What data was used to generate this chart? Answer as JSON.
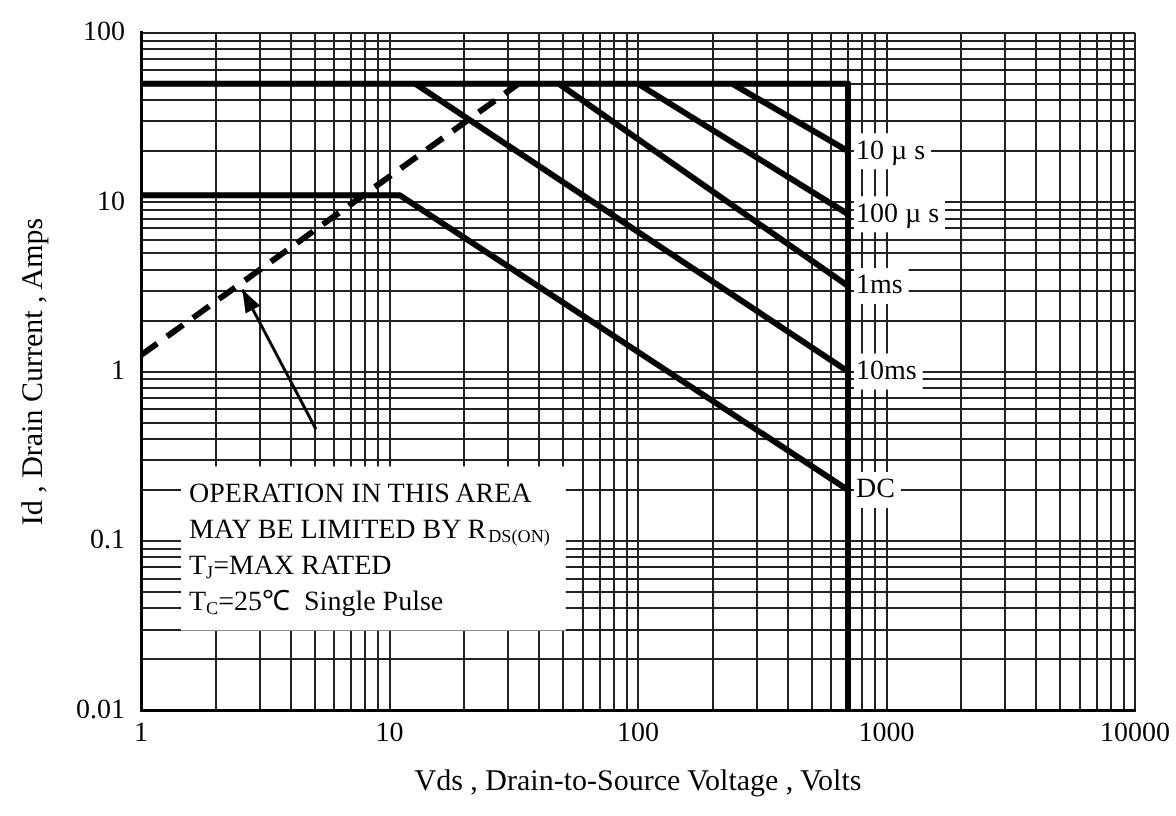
{
  "chart_data": {
    "type": "line",
    "xlabel": "Vds , Drain-to-Source Voltage , Volts",
    "ylabel": "Id , Drain Current , Amps",
    "xlim": [
      1,
      10000
    ],
    "xticks": [
      1,
      10,
      100,
      1000,
      10000
    ],
    "ylim": [
      0.01,
      100
    ],
    "yticks": [
      0.01,
      0.1,
      1,
      10,
      100
    ],
    "log": "xy",
    "grid": true,
    "legend": false,
    "marker": "none",
    "line_style": "solid",
    "series": [
      {
        "color": "#000000",
        "x": [
          1,
          700,
          700
        ],
        "values": [
          50,
          50,
          0.01
        ]
      },
      {
        "name": "10 µ s",
        "color": "#000000",
        "x": [
          240,
          700
        ],
        "values": [
          50,
          20
        ]
      },
      {
        "name": "100 µ s",
        "color": "#000000",
        "x": [
          100,
          700
        ],
        "values": [
          50,
          8.5
        ]
      },
      {
        "name": "1ms",
        "color": "#000000",
        "x": [
          48,
          700
        ],
        "values": [
          50,
          3.2
        ]
      },
      {
        "name": "10ms",
        "color": "#000000",
        "x": [
          12.7,
          700
        ],
        "values": [
          50,
          1
        ]
      },
      {
        "name": "DC",
        "color": "#000000",
        "x": [
          1,
          11,
          700
        ],
        "values": [
          11,
          11,
          0.2
        ]
      },
      {
        "color": "#000000",
        "line_style": "dashed",
        "x": [
          1,
          33
        ],
        "values": [
          1.25,
          50
        ]
      }
    ],
    "annotations": [
      "OPERATION IN THIS AREA",
      "MAY BE LIMITED BY R$_{DS(ON)}$",
      "T$_{J}$=MAX RATED",
      "T$_{C}$=25℃  Single Pulse"
    ]
  }
}
